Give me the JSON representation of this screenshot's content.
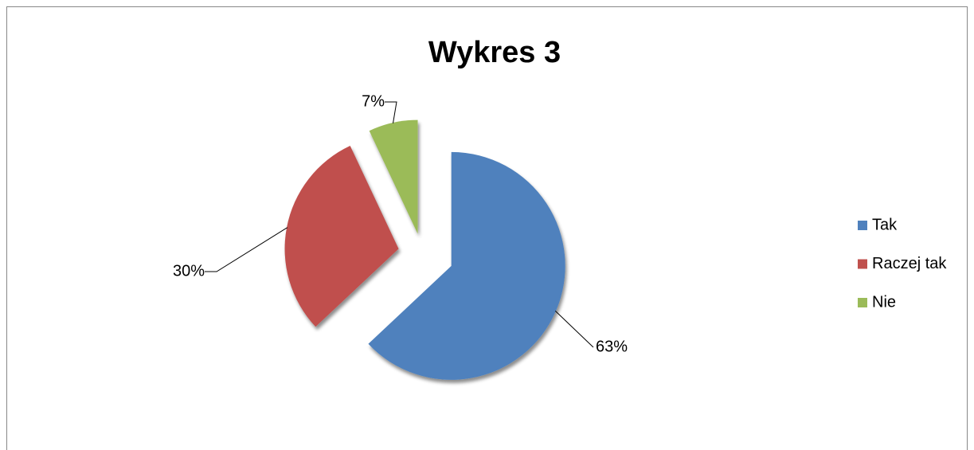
{
  "chart_data": {
    "type": "pie",
    "title": "Wykres 3",
    "categories": [
      "Tak",
      "Raczej tak",
      "Nie"
    ],
    "values": [
      63,
      30,
      7
    ],
    "value_labels": [
      "63%",
      "30%",
      "7%"
    ],
    "colors": [
      "#4f81bd",
      "#c0504d",
      "#9bbb59"
    ],
    "legend": "right"
  }
}
